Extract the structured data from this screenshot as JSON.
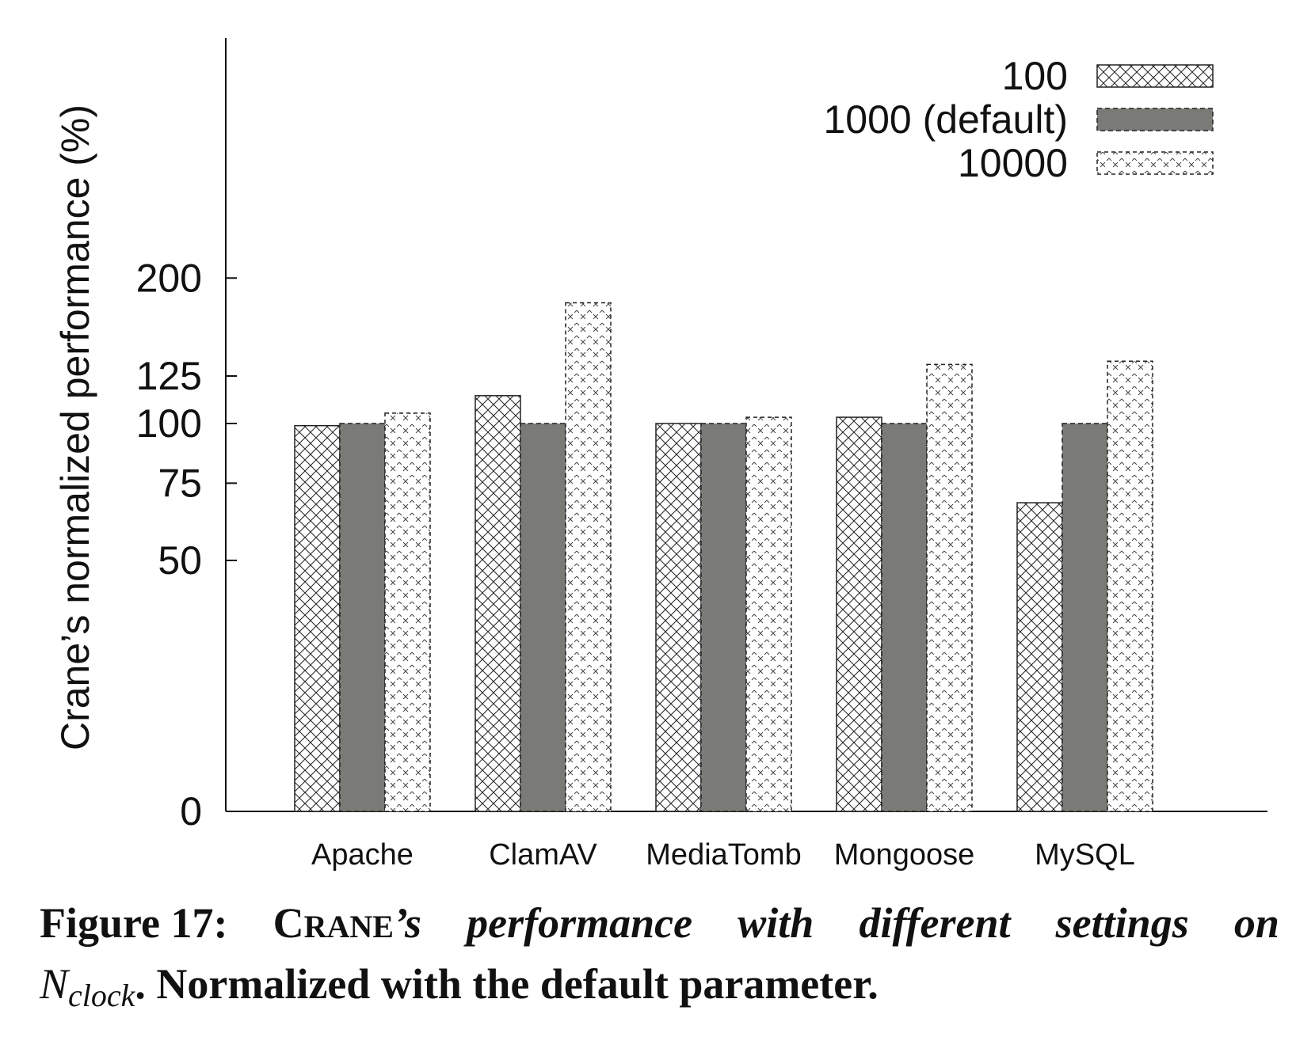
{
  "chart_data": {
    "type": "bar",
    "categories": [
      "Apache",
      "ClamAV",
      "MediaTomb",
      "Mongoose",
      "MySQL"
    ],
    "series": [
      {
        "name": "100",
        "values": [
          99,
          114,
          100,
          103,
          68
        ],
        "pattern": "crosshatch"
      },
      {
        "name": "1000 (default)",
        "values": [
          100,
          100,
          100,
          100,
          100
        ],
        "pattern": "solid"
      },
      {
        "name": "10000",
        "values": [
          105,
          177,
          103,
          132,
          134
        ],
        "pattern": "dotted"
      }
    ],
    "ylabel": "Crane’s normalized performance (%)",
    "xlabel": "",
    "yticks": [
      0,
      50,
      75,
      100,
      125,
      200
    ],
    "ylim": [
      0,
      200
    ],
    "y_scale": "reciprocal",
    "legend_position": "top-right",
    "grid": false,
    "colors": {
      "solid_fill": "#7a7a76",
      "axis": "#111111",
      "hatch": "#222222"
    }
  },
  "caption": {
    "fig_label": "Figure 17:",
    "crane_c": "C",
    "crane_rest": "RANE",
    "words": [
      "’s",
      "performance",
      "with",
      "different",
      "settings",
      "on"
    ],
    "n_symbol": "N",
    "n_sub": "clock",
    "line2_rest": ". Normalized with the default parameter."
  }
}
